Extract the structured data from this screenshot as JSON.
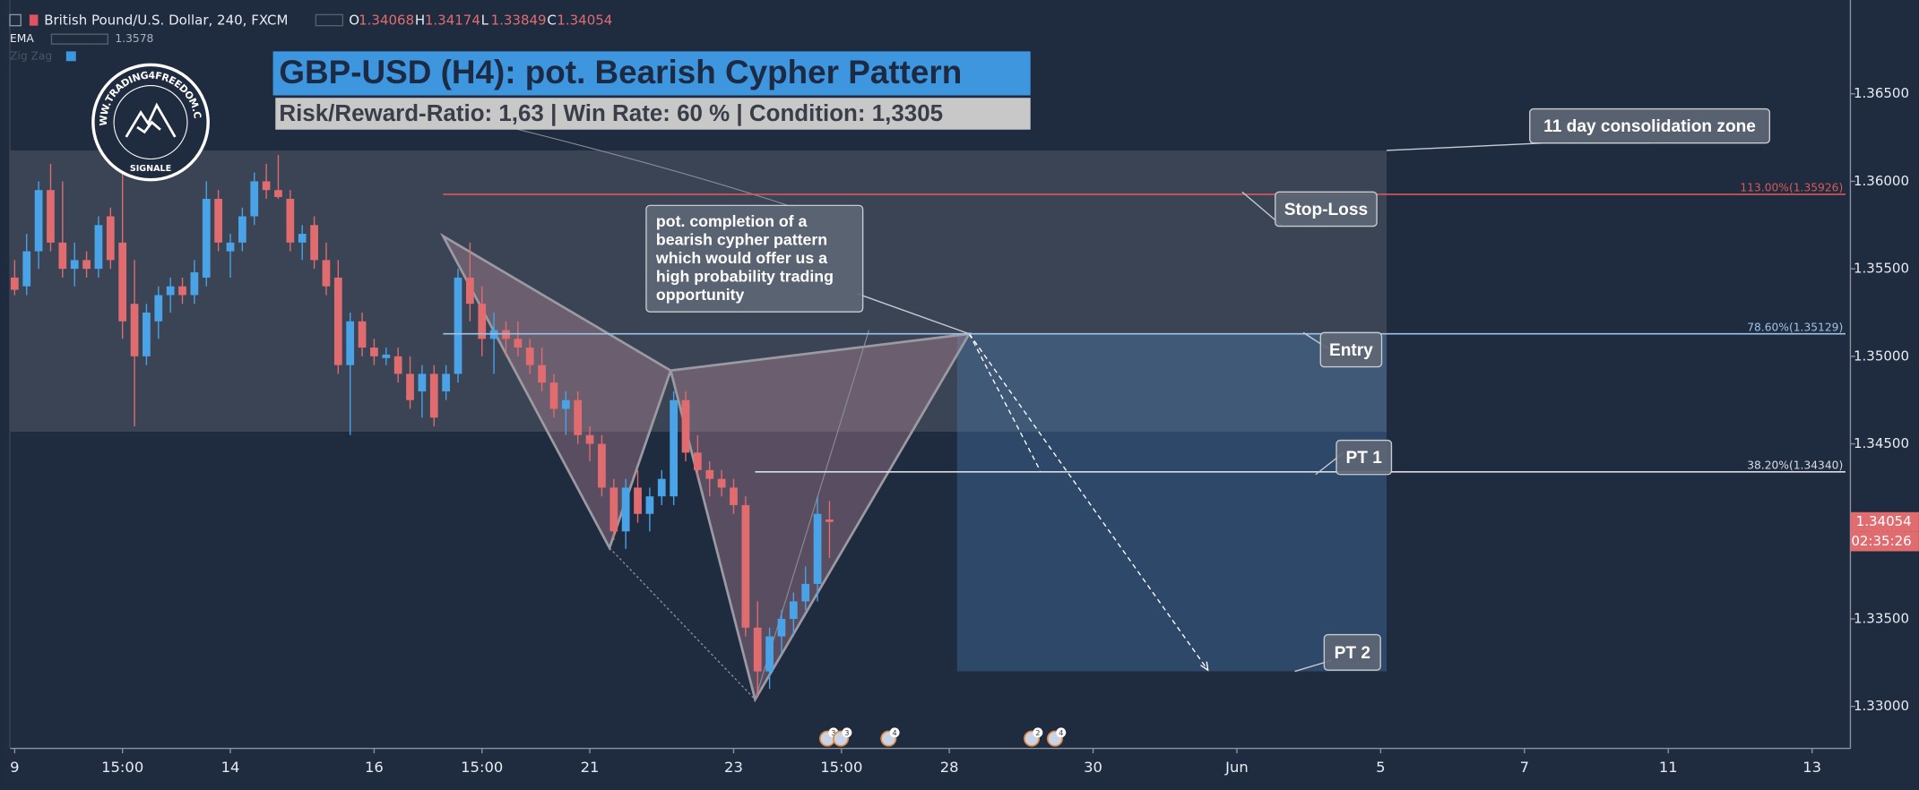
{
  "chart_data": {
    "type": "candlestick",
    "title": "GBP-USD (H4): pot. Bearish Cypher Pattern",
    "subtitle": "Risk/Reward-Ratio: 1,63 | Win Rate: 60 % | Condition: 1,3305",
    "symbol": "British Pound/U.S. Dollar, 240, FXCM",
    "ohlc": [
      {
        "label": "O",
        "value": 1.34068
      },
      {
        "label": "H",
        "value": 1.34174
      },
      {
        "label": "L",
        "value": 1.33849
      },
      {
        "label": "C",
        "value": 1.34054
      }
    ],
    "ema": {
      "name": "EMA",
      "value": 1.3578
    },
    "zigzag": "Zig Zag",
    "logo": {
      "ring": "WWW.TRADING4FREEDOM.COM",
      "bottom": "SIGNALE"
    },
    "countdown": "02:35:26",
    "up_color": "#4aa3e6",
    "down_color": "#e06c70",
    "ylim": [
      1.3276,
      1.3698
    ],
    "yticks": [
      {
        "value": 1.33,
        "label": "1.33000"
      },
      {
        "value": 1.335,
        "label": "1.33500"
      },
      {
        "value": 1.34,
        "label": "1.34000"
      },
      {
        "value": 1.345,
        "label": "1.34500"
      },
      {
        "value": 1.35,
        "label": "1.35000"
      },
      {
        "value": 1.355,
        "label": "1.35500"
      },
      {
        "value": 1.36,
        "label": "1.36000"
      },
      {
        "value": 1.365,
        "label": "1.36500"
      }
    ],
    "xlim": [
      -0.4,
      153.2
    ],
    "xticks": [
      {
        "value": 0,
        "label": "9"
      },
      {
        "value": 9,
        "label": "15:00"
      },
      {
        "value": 18,
        "label": "14"
      },
      {
        "value": 30,
        "label": "16"
      },
      {
        "value": 39,
        "label": "15:00"
      },
      {
        "value": 48,
        "label": "21"
      },
      {
        "value": 60,
        "label": "23"
      },
      {
        "value": 69,
        "label": "15:00"
      },
      {
        "value": 78,
        "label": "28"
      },
      {
        "value": 90,
        "label": "30"
      },
      {
        "value": 102,
        "label": "Jun"
      },
      {
        "value": 114,
        "label": "5"
      },
      {
        "value": 126,
        "label": "7"
      },
      {
        "value": 138,
        "label": "11"
      },
      {
        "value": 150,
        "label": "13"
      }
    ],
    "candles": [
      [
        1.3545,
        1.3555,
        1.3535,
        1.3538
      ],
      [
        1.354,
        1.357,
        1.3535,
        1.356
      ],
      [
        1.356,
        1.36,
        1.355,
        1.3595
      ],
      [
        1.3595,
        1.361,
        1.356,
        1.3565
      ],
      [
        1.3565,
        1.36,
        1.3545,
        1.355
      ],
      [
        1.355,
        1.3565,
        1.354,
        1.3555
      ],
      [
        1.3555,
        1.356,
        1.3545,
        1.355
      ],
      [
        1.355,
        1.358,
        1.3545,
        1.3575
      ],
      [
        1.358,
        1.3585,
        1.355,
        1.3555
      ],
      [
        1.3565,
        1.3625,
        1.351,
        1.352
      ],
      [
        1.353,
        1.3555,
        1.346,
        1.35
      ],
      [
        1.35,
        1.353,
        1.3495,
        1.3525
      ],
      [
        1.352,
        1.354,
        1.351,
        1.3535
      ],
      [
        1.3535,
        1.3545,
        1.3525,
        1.354
      ],
      [
        1.354,
        1.3545,
        1.353,
        1.3535
      ],
      [
        1.3535,
        1.3555,
        1.353,
        1.3548
      ],
      [
        1.3545,
        1.36,
        1.354,
        1.359
      ],
      [
        1.359,
        1.3595,
        1.356,
        1.3565
      ],
      [
        1.356,
        1.357,
        1.3545,
        1.3565
      ],
      [
        1.3565,
        1.3585,
        1.356,
        1.358
      ],
      [
        1.358,
        1.3605,
        1.3575,
        1.36
      ],
      [
        1.36,
        1.361,
        1.359,
        1.3595
      ],
      [
        1.3595,
        1.3615,
        1.359,
        1.3591
      ],
      [
        1.359,
        1.3595,
        1.356,
        1.3565
      ],
      [
        1.3565,
        1.3575,
        1.3555,
        1.357
      ],
      [
        1.3575,
        1.358,
        1.355,
        1.3555
      ],
      [
        1.3555,
        1.3565,
        1.3535,
        1.354
      ],
      [
        1.3545,
        1.3555,
        1.349,
        1.3495
      ],
      [
        1.3495,
        1.3525,
        1.3455,
        1.352
      ],
      [
        1.352,
        1.3525,
        1.35,
        1.3505
      ],
      [
        1.3505,
        1.351,
        1.3495,
        1.35
      ],
      [
        1.3499,
        1.3505,
        1.3495,
        1.3501
      ],
      [
        1.35,
        1.3505,
        1.3485,
        1.349
      ],
      [
        1.349,
        1.35,
        1.347,
        1.3475
      ],
      [
        1.348,
        1.3495,
        1.3465,
        1.349
      ],
      [
        1.349,
        1.3495,
        1.346,
        1.3465
      ],
      [
        1.348,
        1.3495,
        1.3475,
        1.349
      ],
      [
        1.349,
        1.355,
        1.3485,
        1.3545
      ],
      [
        1.3545,
        1.3565,
        1.352,
        1.353
      ],
      [
        1.353,
        1.354,
        1.35,
        1.351
      ],
      [
        1.351,
        1.3525,
        1.349,
        1.3515
      ],
      [
        1.3515,
        1.352,
        1.35,
        1.351
      ],
      [
        1.351,
        1.352,
        1.35,
        1.3505
      ],
      [
        1.3505,
        1.351,
        1.349,
        1.3495
      ],
      [
        1.3495,
        1.3505,
        1.348,
        1.3485
      ],
      [
        1.3485,
        1.349,
        1.3465,
        1.347
      ],
      [
        1.347,
        1.348,
        1.3455,
        1.3475
      ],
      [
        1.3475,
        1.348,
        1.345,
        1.3455
      ],
      [
        1.3455,
        1.346,
        1.344,
        1.345
      ],
      [
        1.345,
        1.3455,
        1.342,
        1.3425
      ],
      [
        1.3425,
        1.343,
        1.3395,
        1.34
      ],
      [
        1.34,
        1.343,
        1.339,
        1.3425
      ],
      [
        1.3425,
        1.3435,
        1.3405,
        1.341
      ],
      [
        1.341,
        1.3425,
        1.34,
        1.342
      ],
      [
        1.342,
        1.3435,
        1.3415,
        1.343
      ],
      [
        1.342,
        1.348,
        1.3415,
        1.3475
      ],
      [
        1.3475,
        1.348,
        1.344,
        1.3445
      ],
      [
        1.3445,
        1.3455,
        1.343,
        1.3435
      ],
      [
        1.3435,
        1.344,
        1.342,
        1.343
      ],
      [
        1.343,
        1.3435,
        1.342,
        1.3425
      ],
      [
        1.3425,
        1.343,
        1.341,
        1.3415
      ],
      [
        1.3415,
        1.342,
        1.334,
        1.3345
      ],
      [
        1.3345,
        1.336,
        1.3305,
        1.332
      ],
      [
        1.332,
        1.3345,
        1.331,
        1.334
      ],
      [
        1.334,
        1.3355,
        1.333,
        1.335
      ],
      [
        1.335,
        1.3365,
        1.334,
        1.336
      ],
      [
        1.336,
        1.338,
        1.3355,
        1.337
      ],
      [
        1.337,
        1.342,
        1.336,
        1.341
      ],
      [
        1.34068,
        1.34174,
        1.33849,
        1.34054
      ]
    ],
    "levels": [
      {
        "value": 1.35926,
        "label": "113.00%(1.35926)",
        "color": "#d9585c"
      },
      {
        "value": 1.35129,
        "label": "78.60%(1.35129)",
        "color": "#9fc3e6"
      },
      {
        "value": 1.3434,
        "label": "38.20%(1.34340)",
        "color": "#d6dde6"
      }
    ],
    "callouts": {
      "zone": "11 day consolidation zone",
      "stop_loss": "Stop-Loss",
      "entry": "Entry",
      "pt1": "PT 1",
      "pt2": "PT 2",
      "note": [
        "pot. completion of a",
        "bearish cypher pattern",
        "which would offer us a",
        "high probability trading",
        "opportunity"
      ]
    },
    "events": [
      3,
      3,
      4,
      2,
      4
    ]
  }
}
